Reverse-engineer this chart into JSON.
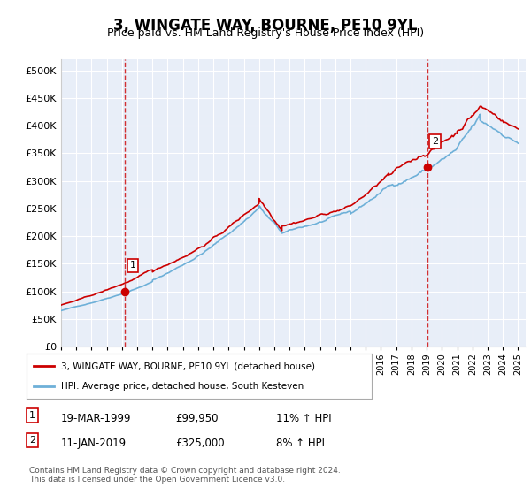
{
  "title": "3, WINGATE WAY, BOURNE, PE10 9YL",
  "subtitle": "Price paid vs. HM Land Registry's House Price Index (HPI)",
  "ytick_values": [
    0,
    50000,
    100000,
    150000,
    200000,
    250000,
    300000,
    350000,
    400000,
    450000,
    500000
  ],
  "ylim": [
    0,
    520000
  ],
  "xlim_start": 1995.0,
  "xlim_end": 2025.5,
  "hpi_color": "#6eb0d8",
  "price_color": "#cc0000",
  "marker1_x": 1999.21,
  "marker1_y": 99950,
  "marker2_x": 2019.04,
  "marker2_y": 325000,
  "marker1_label": "1",
  "marker2_label": "2",
  "legend_line1": "3, WINGATE WAY, BOURNE, PE10 9YL (detached house)",
  "legend_line2": "HPI: Average price, detached house, South Kesteven",
  "annotation1_num": "1",
  "annotation1_date": "19-MAR-1999",
  "annotation1_price": "£99,950",
  "annotation1_hpi": "11% ↑ HPI",
  "annotation2_num": "2",
  "annotation2_date": "11-JAN-2019",
  "annotation2_price": "£325,000",
  "annotation2_hpi": "8% ↑ HPI",
  "footer": "Contains HM Land Registry data © Crown copyright and database right 2024.\nThis data is licensed under the Open Government Licence v3.0.",
  "plot_bg_color": "#e8eef8"
}
